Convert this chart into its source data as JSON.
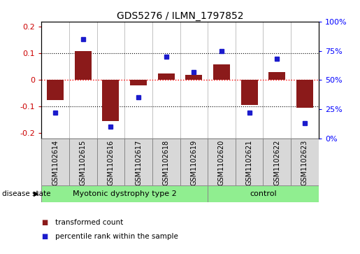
{
  "title": "GDS5276 / ILMN_1797852",
  "samples": [
    "GSM1102614",
    "GSM1102615",
    "GSM1102616",
    "GSM1102617",
    "GSM1102618",
    "GSM1102619",
    "GSM1102620",
    "GSM1102621",
    "GSM1102622",
    "GSM1102623"
  ],
  "red_values": [
    -0.075,
    0.11,
    -0.155,
    -0.02,
    0.025,
    0.02,
    0.06,
    -0.095,
    0.03,
    -0.105
  ],
  "blue_values": [
    22,
    85,
    10,
    35,
    70,
    57,
    75,
    22,
    68,
    13
  ],
  "groups": [
    {
      "label": "Myotonic dystrophy type 2",
      "start": 0,
      "end": 5
    },
    {
      "label": "control",
      "start": 6,
      "end": 9
    }
  ],
  "bar_color": "#8B1A1A",
  "dot_color": "#1B1BCC",
  "sample_box_color": "#D8D8D8",
  "group_color": "#90EE90",
  "plot_bg": "#FFFFFF",
  "ylim_left": [
    -0.22,
    0.22
  ],
  "ylim_right": [
    0,
    110
  ],
  "yticks_left": [
    -0.2,
    -0.1,
    0.0,
    0.1,
    0.2
  ],
  "yticks_right": [
    0,
    25,
    50,
    75,
    100
  ],
  "ytick_labels_left": [
    "-0.2",
    "-0.1",
    "0",
    "0.1",
    "0.2"
  ],
  "ytick_labels_right": [
    "0%",
    "25%",
    "50%",
    "75%",
    "100%"
  ],
  "disease_state_label": "disease state",
  "legend_items": [
    "transformed count",
    "percentile rank within the sample"
  ]
}
